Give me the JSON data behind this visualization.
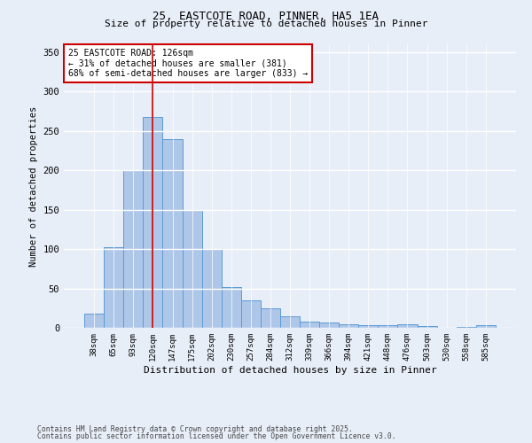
{
  "title1": "25, EASTCOTE ROAD, PINNER, HA5 1EA",
  "title2": "Size of property relative to detached houses in Pinner",
  "xlabel": "Distribution of detached houses by size in Pinner",
  "ylabel": "Number of detached properties",
  "categories": [
    "38sqm",
    "65sqm",
    "93sqm",
    "120sqm",
    "147sqm",
    "175sqm",
    "202sqm",
    "230sqm",
    "257sqm",
    "284sqm",
    "312sqm",
    "339sqm",
    "366sqm",
    "394sqm",
    "421sqm",
    "448sqm",
    "476sqm",
    "503sqm",
    "530sqm",
    "558sqm",
    "585sqm"
  ],
  "values": [
    18,
    102,
    200,
    268,
    240,
    150,
    100,
    52,
    35,
    25,
    15,
    8,
    7,
    5,
    3,
    3,
    5,
    2,
    0,
    1,
    3
  ],
  "bar_color": "#aec6e8",
  "bar_edge_color": "#5b9bd5",
  "vline_x": 3,
  "vline_color": "#cc0000",
  "annotation_text": "25 EASTCOTE ROAD: 126sqm\n← 31% of detached houses are smaller (381)\n68% of semi-detached houses are larger (833) →",
  "annotation_box_color": "#ffffff",
  "annotation_box_edge": "#cc0000",
  "ylim": [
    0,
    360
  ],
  "yticks": [
    0,
    50,
    100,
    150,
    200,
    250,
    300,
    350
  ],
  "bg_color": "#e8eef8",
  "footer1": "Contains HM Land Registry data © Crown copyright and database right 2025.",
  "footer2": "Contains public sector information licensed under the Open Government Licence v3.0."
}
